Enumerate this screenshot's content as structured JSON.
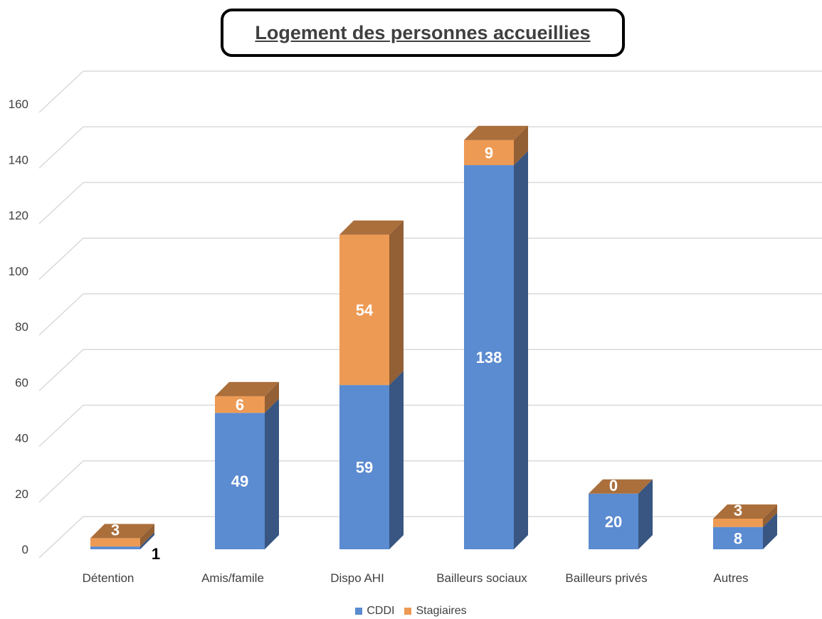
{
  "chart_data": {
    "type": "bar",
    "stacked": true,
    "style": "3d-column",
    "title": "Logement des personnes accueillies",
    "categories": [
      "Détention",
      "Amis/famile",
      "Dispo AHI",
      "Bailleurs sociaux",
      "Bailleurs privés",
      "Autres"
    ],
    "series": [
      {
        "name": "CDDI",
        "values": [
          1,
          49,
          59,
          138,
          20,
          8
        ],
        "color": "#5B8BD0"
      },
      {
        "name": "Stagiaires",
        "values": [
          3,
          6,
          54,
          9,
          0,
          3
        ],
        "color": "#ED9A54"
      }
    ],
    "yticks": [
      0,
      20,
      40,
      60,
      80,
      100,
      120,
      140,
      160
    ],
    "ylim": [
      0,
      160
    ],
    "grid": true,
    "legend": "bottom"
  }
}
